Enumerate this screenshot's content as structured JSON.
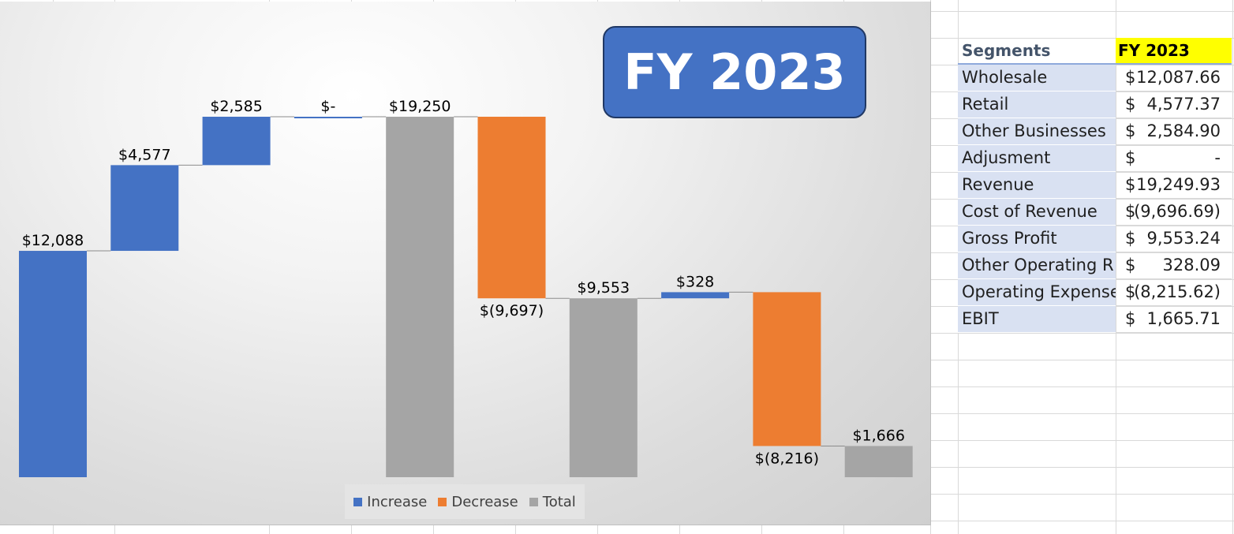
{
  "title": "FY 2023",
  "chart_data": {
    "type": "waterfall",
    "categories": [
      "Wholesale",
      "Retail",
      "Other Businesses",
      "Adjusment",
      "Revenue",
      "Cost of Revenue",
      "Gross Profit",
      "Other Operating R",
      "Operating Expense",
      "EBIT"
    ],
    "values": [
      12087.66,
      4577.37,
      2584.9,
      0,
      19249.93,
      -9696.69,
      9553.24,
      328.09,
      -8215.62,
      1665.71
    ],
    "kinds": [
      "increase",
      "increase",
      "increase",
      "increase",
      "total",
      "decrease",
      "total",
      "increase",
      "decrease",
      "total"
    ],
    "data_labels": [
      "$12,088",
      "$4,577",
      "$2,585",
      "$-",
      "$19,250",
      "$(9,697)",
      "$9,553",
      "$328",
      "$(8,216)",
      "$1,666"
    ],
    "ylim": [
      0,
      19250
    ],
    "legend": [
      {
        "name": "Increase",
        "color": "#4472c4"
      },
      {
        "name": "Decrease",
        "color": "#ed7d31"
      },
      {
        "name": "Total",
        "color": "#a5a5a5"
      }
    ],
    "legend_position": "bottom"
  },
  "table": {
    "headers": [
      "Segments",
      "FY 2023"
    ],
    "rows": [
      {
        "segment": "Wholesale",
        "symbol": "$",
        "value": "12,087.66"
      },
      {
        "segment": "Retail",
        "symbol": "$",
        "value": "4,577.37"
      },
      {
        "segment": "Other Businesses",
        "symbol": "$",
        "value": "2,584.90"
      },
      {
        "segment": "Adjusment",
        "symbol": "$",
        "value": "-"
      },
      {
        "segment": "Revenue",
        "symbol": "$",
        "value": "19,249.93"
      },
      {
        "segment": "Cost of Revenue",
        "symbol": "$",
        "value": "(9,696.69)"
      },
      {
        "segment": "Gross Profit",
        "symbol": "$",
        "value": "9,553.24"
      },
      {
        "segment": "Other Operating R",
        "symbol": "$",
        "value": "328.09"
      },
      {
        "segment": "Operating Expense",
        "symbol": "$",
        "value": "(8,215.62)"
      },
      {
        "segment": "EBIT",
        "symbol": "$",
        "value": "1,665.71"
      }
    ]
  }
}
